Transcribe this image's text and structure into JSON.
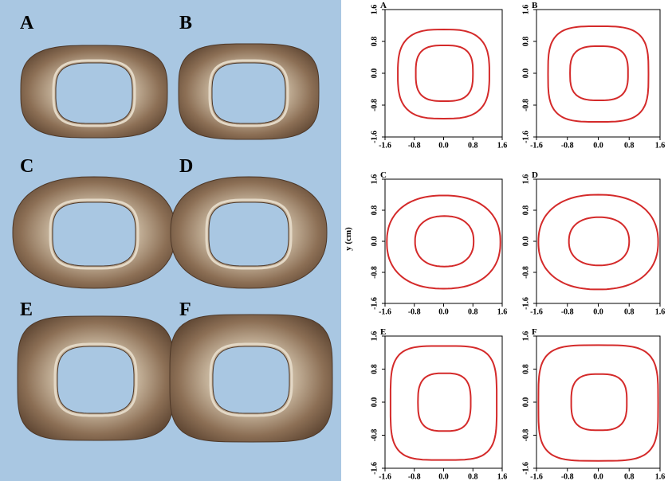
{
  "photos": {
    "labels": [
      "A",
      "B",
      "C",
      "D",
      "E",
      "F"
    ]
  },
  "plots": {
    "y_label": "y (cm)",
    "panels": [
      {
        "label": "A"
      },
      {
        "label": "B"
      },
      {
        "label": "C"
      },
      {
        "label": "D"
      },
      {
        "label": "E"
      },
      {
        "label": "F"
      }
    ],
    "xlim": [
      -1.6,
      1.6
    ],
    "ylim": [
      -1.6,
      1.6
    ],
    "xticks": [
      -1.6,
      -0.8,
      {
        "value": 0,
        "label": "0.0"
      },
      0.8,
      1.6
    ],
    "yticks": [
      -1.6,
      -0.8,
      {
        "value": 0,
        "label": "0.0"
      },
      0.8,
      1.6
    ]
  }
}
